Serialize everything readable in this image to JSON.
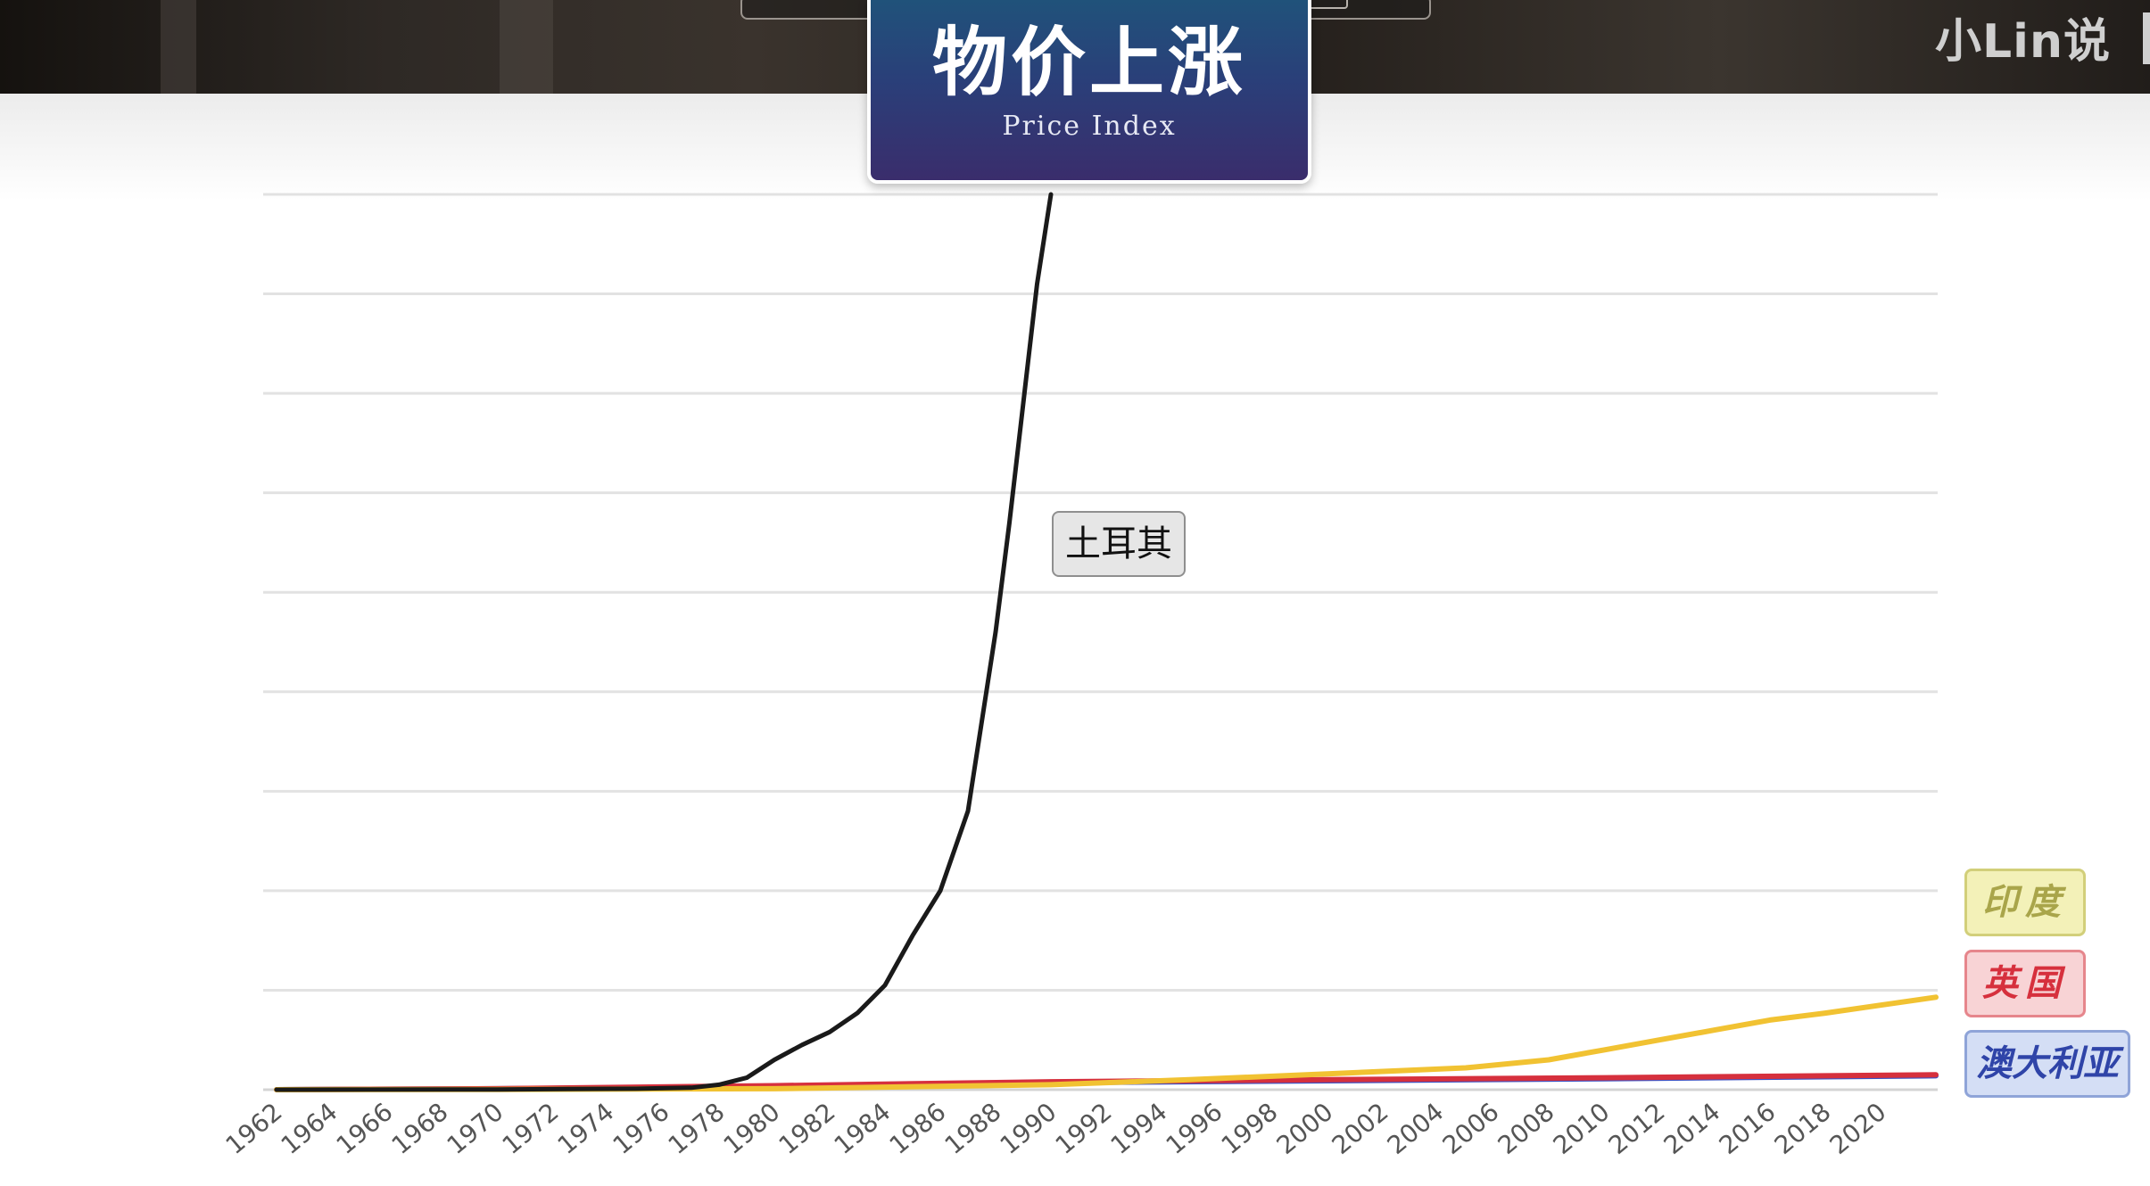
{
  "title_card": {
    "main": "物价上涨",
    "sub": "Price Index"
  },
  "watermark": "小Lin说",
  "colors": {
    "turkey": "#1a1a1a",
    "india": "#f1c232",
    "uk": "#d6303d",
    "australia": "#3b52c4",
    "grid": "#e2e2e2"
  },
  "chart_data": {
    "type": "line",
    "title": "Price Index",
    "xlabel": "",
    "ylabel": "",
    "x_ticks": [
      "1962",
      "1964",
      "1966",
      "1968",
      "1970",
      "1972",
      "1974",
      "1976",
      "1978",
      "1980",
      "1982",
      "1984",
      "1986",
      "1988",
      "1990",
      "1992",
      "1994",
      "1996",
      "1998",
      "2000",
      "2002",
      "2004",
      "2006",
      "2008",
      "2010",
      "2012",
      "2014",
      "2016",
      "2018",
      "2020"
    ],
    "xlim": [
      1962,
      2022
    ],
    "ylim": [
      0,
      9
    ],
    "y_gridlines": 9,
    "series": [
      {
        "name": "土耳其",
        "color_key": "turkey",
        "x": [
          1962,
          1970,
          1975,
          1977,
          1978,
          1979,
          1980,
          1981,
          1982,
          1983,
          1984,
          1985,
          1986,
          1987,
          1988,
          1988.5,
          1989,
          1989.5,
          1990
        ],
        "values": [
          0,
          0.003,
          0.01,
          0.02,
          0.05,
          0.12,
          0.3,
          0.45,
          0.58,
          0.77,
          1.05,
          1.55,
          2.0,
          2.8,
          4.6,
          5.7,
          6.9,
          8.1,
          9.0
        ]
      },
      {
        "name": "印度",
        "color_key": "india",
        "x": [
          1962,
          1970,
          1980,
          1990,
          1995,
          2000,
          2005,
          2008,
          2010,
          2012,
          2014,
          2016,
          2018,
          2020,
          2022
        ],
        "values": [
          0,
          0.003,
          0.01,
          0.05,
          0.1,
          0.16,
          0.22,
          0.3,
          0.4,
          0.5,
          0.6,
          0.7,
          0.77,
          0.85,
          0.93
        ]
      },
      {
        "name": "英国",
        "color_key": "uk",
        "x": [
          1962,
          1970,
          1980,
          1990,
          2000,
          2010,
          2022
        ],
        "values": [
          0,
          0.01,
          0.04,
          0.08,
          0.1,
          0.12,
          0.15
        ]
      },
      {
        "name": "澳大利亚",
        "color_key": "australia",
        "x": [
          1962,
          1970,
          1980,
          1990,
          2000,
          2010,
          2022
        ],
        "values": [
          0,
          0.01,
          0.03,
          0.07,
          0.09,
          0.11,
          0.14
        ]
      }
    ],
    "series_labels": {
      "turkey": "土耳其",
      "india": "印度",
      "uk": "英国",
      "australia": "澳大利亚"
    }
  }
}
